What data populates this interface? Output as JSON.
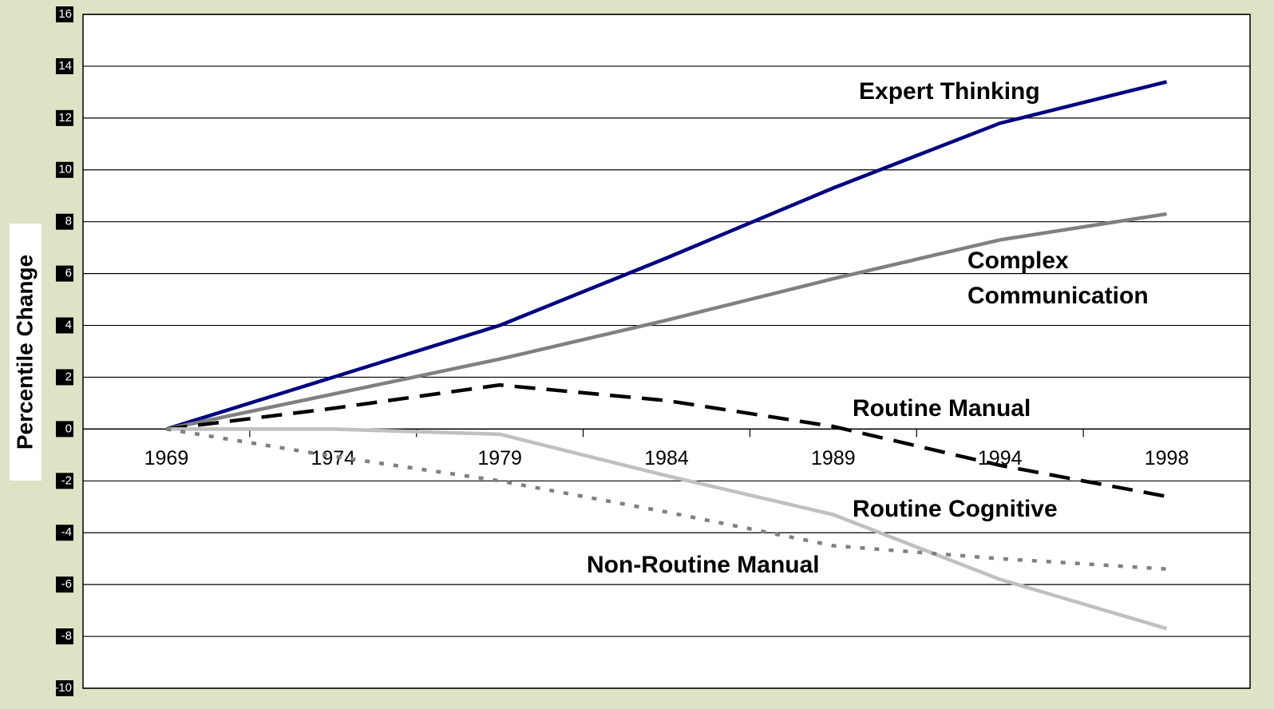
{
  "chart_data": {
    "type": "line",
    "ylabel": "Percentile Change",
    "categories": [
      "1969",
      "1974",
      "1979",
      "1984",
      "1989",
      "1994",
      "1998"
    ],
    "series": [
      {
        "name": "Expert Thinking",
        "color": "#000080",
        "style": "solid",
        "values": [
          0,
          2.0,
          4.0,
          6.6,
          9.3,
          11.8,
          13.4
        ]
      },
      {
        "name": "Complex Communication",
        "color": "#808080",
        "style": "solid",
        "values": [
          0,
          1.35,
          2.7,
          4.2,
          5.8,
          7.3,
          8.3
        ]
      },
      {
        "name": "Routine Manual",
        "color": "#000000",
        "style": "dashed",
        "values": [
          0,
          0.8,
          1.7,
          1.1,
          0.1,
          -1.4,
          -2.6
        ]
      },
      {
        "name": "Routine Cognitive",
        "color": "#c0c0c0",
        "style": "solid",
        "values": [
          0,
          0,
          -0.2,
          -1.8,
          -3.3,
          -5.8,
          -7.7
        ]
      },
      {
        "name": "Non-Routine Manual",
        "color": "#808080",
        "style": "dotted",
        "values": [
          0,
          -1.05,
          -2.0,
          -3.2,
          -4.5,
          -5.0,
          -5.4
        ]
      }
    ],
    "ylim": [
      -10,
      16
    ],
    "yticks": [
      -10,
      -8,
      -6,
      -4,
      -2,
      0,
      2,
      4,
      6,
      8,
      10,
      12,
      14,
      16
    ],
    "grid": true
  }
}
